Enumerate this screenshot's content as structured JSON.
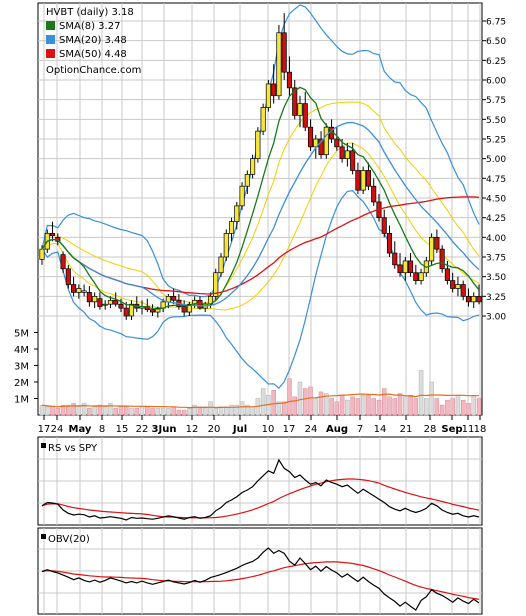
{
  "chart_data": [
    {
      "type": "candlestick",
      "title": "HVBT (daily) 3.18",
      "watermark": "OptionChance.com",
      "legend": [
        {
          "label": "SMA(8) 3.27",
          "color": "#1a7a1a"
        },
        {
          "label": "SMA(20) 3.48",
          "color": "#3a8fd9"
        },
        {
          "label": "SMA(50) 4.48",
          "color": "#dd1111"
        }
      ],
      "legend_position": "top-left",
      "grid": true,
      "y_axis": {
        "side": "right",
        "ticks": [
          "6.75",
          "6.50",
          "6.25",
          "6.00",
          "5.75",
          "5.50",
          "5.25",
          "5.00",
          "4.75",
          "4.50",
          "4.25",
          "4.00",
          "3.75",
          "3.50",
          "3.25",
          "3.00"
        ],
        "range": [
          2.5,
          6.9
        ]
      },
      "volume_axis": {
        "ticks": [
          "5M",
          "4M",
          "3M",
          "2M",
          "1M"
        ]
      },
      "x_tick_labels": [
        "17",
        "24",
        "May",
        "8",
        "15",
        "22",
        "3Jun",
        "12",
        "20",
        "Jul",
        "10",
        "17",
        "24",
        "Aug",
        "7",
        "14",
        "21",
        "28",
        "Sep",
        "11",
        "18"
      ],
      "x_tick_bold": [
        "May",
        "Jun",
        "Jul",
        "Aug",
        "Sep"
      ],
      "ohlc": [
        [
          3.72,
          3.9,
          3.65,
          3.85
        ],
        [
          3.85,
          4.1,
          3.8,
          4.05
        ],
        [
          4.05,
          4.2,
          3.95,
          4.02
        ],
        [
          4.0,
          4.05,
          3.9,
          3.95
        ],
        [
          3.78,
          3.82,
          3.55,
          3.6
        ],
        [
          3.6,
          3.65,
          3.35,
          3.4
        ],
        [
          3.4,
          3.5,
          3.25,
          3.3
        ],
        [
          3.3,
          3.4,
          3.22,
          3.35
        ],
        [
          3.3,
          3.4,
          3.25,
          3.32
        ],
        [
          3.3,
          3.38,
          3.12,
          3.18
        ],
        [
          3.18,
          3.3,
          3.1,
          3.25
        ],
        [
          3.22,
          3.3,
          3.08,
          3.12
        ],
        [
          3.15,
          3.2,
          3.08,
          3.15
        ],
        [
          3.15,
          3.25,
          3.1,
          3.2
        ],
        [
          3.2,
          3.3,
          3.12,
          3.15
        ],
        [
          3.15,
          3.22,
          3.05,
          3.1
        ],
        [
          3.1,
          3.18,
          2.95,
          3.0
        ],
        [
          3.0,
          3.2,
          2.95,
          3.15
        ],
        [
          3.15,
          3.25,
          3.05,
          3.1
        ],
        [
          3.1,
          3.2,
          3.02,
          3.12
        ],
        [
          3.12,
          3.22,
          3.05,
          3.08
        ],
        [
          3.08,
          3.15,
          3.0,
          3.05
        ],
        [
          3.05,
          3.12,
          2.98,
          3.1
        ],
        [
          3.1,
          3.22,
          3.05,
          3.18
        ],
        [
          3.18,
          3.28,
          3.1,
          3.25
        ],
        [
          3.25,
          3.35,
          3.15,
          3.2
        ],
        [
          3.2,
          3.28,
          3.08,
          3.12
        ],
        [
          3.12,
          3.2,
          3.0,
          3.05
        ],
        [
          3.05,
          3.18,
          3.0,
          3.15
        ],
        [
          3.15,
          3.25,
          3.1,
          3.2
        ],
        [
          3.2,
          3.25,
          3.08,
          3.1
        ],
        [
          3.1,
          3.18,
          3.05,
          3.15
        ],
        [
          3.15,
          3.3,
          3.1,
          3.25
        ],
        [
          3.25,
          3.6,
          3.2,
          3.55
        ],
        [
          3.55,
          3.8,
          3.5,
          3.75
        ],
        [
          3.75,
          4.1,
          3.7,
          4.05
        ],
        [
          4.05,
          4.25,
          3.95,
          4.2
        ],
        [
          4.2,
          4.45,
          4.1,
          4.4
        ],
        [
          4.4,
          4.7,
          4.35,
          4.65
        ],
        [
          4.65,
          4.85,
          4.55,
          4.8
        ],
        [
          4.8,
          5.05,
          4.75,
          5.0
        ],
        [
          5.0,
          5.4,
          4.95,
          5.35
        ],
        [
          5.35,
          5.7,
          5.3,
          5.65
        ],
        [
          5.65,
          6.0,
          5.6,
          5.95
        ],
        [
          5.95,
          6.2,
          5.7,
          5.8
        ],
        [
          5.8,
          6.7,
          5.75,
          6.6
        ],
        [
          6.6,
          6.85,
          6.0,
          6.1
        ],
        [
          6.1,
          6.3,
          5.8,
          5.9
        ],
        [
          5.9,
          6.0,
          5.5,
          5.55
        ],
        [
          5.55,
          5.8,
          5.4,
          5.7
        ],
        [
          5.7,
          5.85,
          5.35,
          5.4
        ],
        [
          5.4,
          5.5,
          5.1,
          5.15
        ],
        [
          5.15,
          5.3,
          5.0,
          5.25
        ],
        [
          5.25,
          5.35,
          5.0,
          5.05
        ],
        [
          5.05,
          5.45,
          5.0,
          5.4
        ],
        [
          5.4,
          5.5,
          5.2,
          5.25
        ],
        [
          5.25,
          5.4,
          5.1,
          5.15
        ],
        [
          5.15,
          5.25,
          4.95,
          5.0
        ],
        [
          5.0,
          5.2,
          4.9,
          5.1
        ],
        [
          5.1,
          5.2,
          4.8,
          4.85
        ],
        [
          4.85,
          4.95,
          4.55,
          4.6
        ],
        [
          4.6,
          4.9,
          4.55,
          4.85
        ],
        [
          4.85,
          4.95,
          4.6,
          4.65
        ],
        [
          4.65,
          4.75,
          4.4,
          4.45
        ],
        [
          4.45,
          4.55,
          4.2,
          4.25
        ],
        [
          4.25,
          4.35,
          4.0,
          4.05
        ],
        [
          4.05,
          4.15,
          3.75,
          3.8
        ],
        [
          3.8,
          3.95,
          3.6,
          3.65
        ],
        [
          3.65,
          3.8,
          3.5,
          3.55
        ],
        [
          3.55,
          3.75,
          3.45,
          3.7
        ],
        [
          3.7,
          3.8,
          3.5,
          3.55
        ],
        [
          3.55,
          3.65,
          3.4,
          3.45
        ],
        [
          3.45,
          3.6,
          3.4,
          3.55
        ],
        [
          3.55,
          3.75,
          3.5,
          3.7
        ],
        [
          3.7,
          4.05,
          3.65,
          4.0
        ],
        [
          4.0,
          4.1,
          3.8,
          3.85
        ],
        [
          3.85,
          3.9,
          3.55,
          3.6
        ],
        [
          3.6,
          3.7,
          3.4,
          3.45
        ],
        [
          3.45,
          3.55,
          3.3,
          3.35
        ],
        [
          3.35,
          3.5,
          3.25,
          3.4
        ],
        [
          3.4,
          3.45,
          3.2,
          3.25
        ],
        [
          3.25,
          3.35,
          3.12,
          3.18
        ],
        [
          3.18,
          3.3,
          3.1,
          3.25
        ],
        [
          3.25,
          3.4,
          3.15,
          3.18
        ]
      ],
      "volume_millions": [
        0.6,
        0.5,
        0.5,
        0.4,
        0.6,
        0.6,
        0.7,
        0.5,
        0.7,
        0.4,
        0.5,
        0.6,
        0.5,
        0.7,
        0.4,
        0.5,
        0.5,
        0.4,
        0.4,
        0.5,
        0.5,
        0.4,
        0.4,
        0.4,
        0.4,
        0.5,
        0.3,
        0.3,
        0.4,
        0.6,
        0.5,
        0.5,
        0.8,
        0.4,
        0.5,
        0.5,
        0.6,
        0.6,
        0.8,
        0.6,
        0.5,
        1.0,
        1.6,
        1.2,
        1.5,
        0.8,
        0.8,
        2.2,
        1.1,
        2.0,
        1.6,
        1.7,
        1.0,
        1.4,
        1.3,
        1.0,
        0.8,
        1.2,
        0.9,
        1.1,
        1.0,
        1.2,
        1.2,
        1.0,
        0.9,
        1.6,
        1.1,
        1.0,
        1.3,
        1.1,
        1.2,
        1.0,
        2.7,
        1.0,
        2.0,
        1.0,
        0.6,
        0.9,
        1.0,
        1.2,
        0.9,
        0.7,
        1.2,
        1.0
      ]
    },
    {
      "type": "line",
      "title": "RS vs SPY",
      "series": [
        {
          "name": "RS vs SPY",
          "color": "#000000"
        },
        {
          "color": "#dd1111"
        }
      ]
    },
    {
      "type": "line",
      "title": "OBV(20)",
      "series": [
        {
          "name": "OBV(20)",
          "color": "#000000"
        },
        {
          "color": "#dd1111"
        }
      ]
    }
  ]
}
